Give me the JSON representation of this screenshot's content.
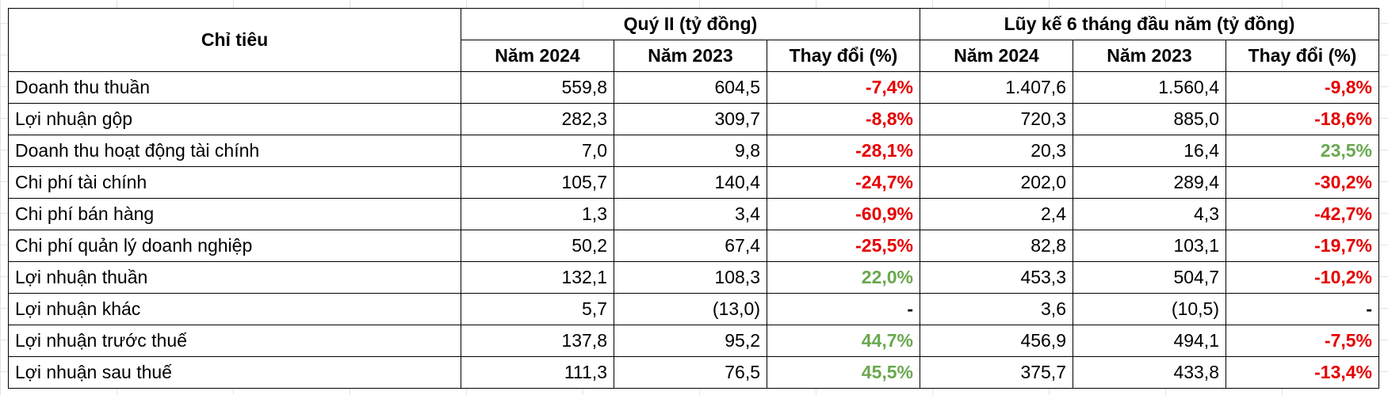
{
  "header": {
    "indicator": "Chỉ tiêu",
    "group_q2": "Quý II (tỷ đồng)",
    "group_ytd": "Lũy kế 6 tháng đầu năm (tỷ đồng)",
    "columns": [
      "Năm 2024",
      "Năm 2023",
      "Thay đổi (%)",
      "Năm 2024",
      "Năm 2023",
      "Thay đổi (%)"
    ]
  },
  "colors": {
    "negative": "#e60000",
    "positive": "#6aa84f"
  },
  "rows": [
    {
      "label": "Doanh thu thuần",
      "cells": [
        "559,8",
        "604,5",
        "-7,4%",
        "1.407,6",
        "1.560,4",
        "-9,8%"
      ],
      "tone": [
        "neg",
        "neg"
      ]
    },
    {
      "label": "Lợi nhuận gộp",
      "cells": [
        "282,3",
        "309,7",
        "-8,8%",
        "720,3",
        "885,0",
        "-18,6%"
      ],
      "tone": [
        "neg",
        "neg"
      ]
    },
    {
      "label": "Doanh thu hoạt động tài chính",
      "cells": [
        "7,0",
        "9,8",
        "-28,1%",
        "20,3",
        "16,4",
        "23,5%"
      ],
      "tone": [
        "neg",
        "pos"
      ]
    },
    {
      "label": "Chi phí tài chính",
      "cells": [
        "105,7",
        "140,4",
        "-24,7%",
        "202,0",
        "289,4",
        "-30,2%"
      ],
      "tone": [
        "neg",
        "neg"
      ]
    },
    {
      "label": "Chi phí bán hàng",
      "cells": [
        "1,3",
        "3,4",
        "-60,9%",
        "2,4",
        "4,3",
        "-42,7%"
      ],
      "tone": [
        "neg",
        "neg"
      ]
    },
    {
      "label": "Chi phí quản lý doanh nghiệp",
      "cells": [
        "50,2",
        "67,4",
        "-25,5%",
        "82,8",
        "103,1",
        "-19,7%"
      ],
      "tone": [
        "neg",
        "neg"
      ]
    },
    {
      "label": "Lợi nhuận thuần",
      "cells": [
        "132,1",
        "108,3",
        "22,0%",
        "453,3",
        "504,7",
        "-10,2%"
      ],
      "tone": [
        "pos",
        "neg"
      ]
    },
    {
      "label": "Lợi nhuận khác",
      "cells": [
        "5,7",
        "(13,0)",
        "-",
        "3,6",
        "(10,5)",
        "-"
      ],
      "tone": [
        "neu",
        "neu"
      ]
    },
    {
      "label": "Lợi nhuận trước thuế",
      "cells": [
        "137,8",
        "95,2",
        "44,7%",
        "456,9",
        "494,1",
        "-7,5%"
      ],
      "tone": [
        "pos",
        "neg"
      ]
    },
    {
      "label": "Lợi nhuận sau thuế",
      "cells": [
        "111,3",
        "76,5",
        "45,5%",
        "375,7",
        "433,8",
        "-13,4%"
      ],
      "tone": [
        "pos",
        "neg"
      ]
    }
  ]
}
